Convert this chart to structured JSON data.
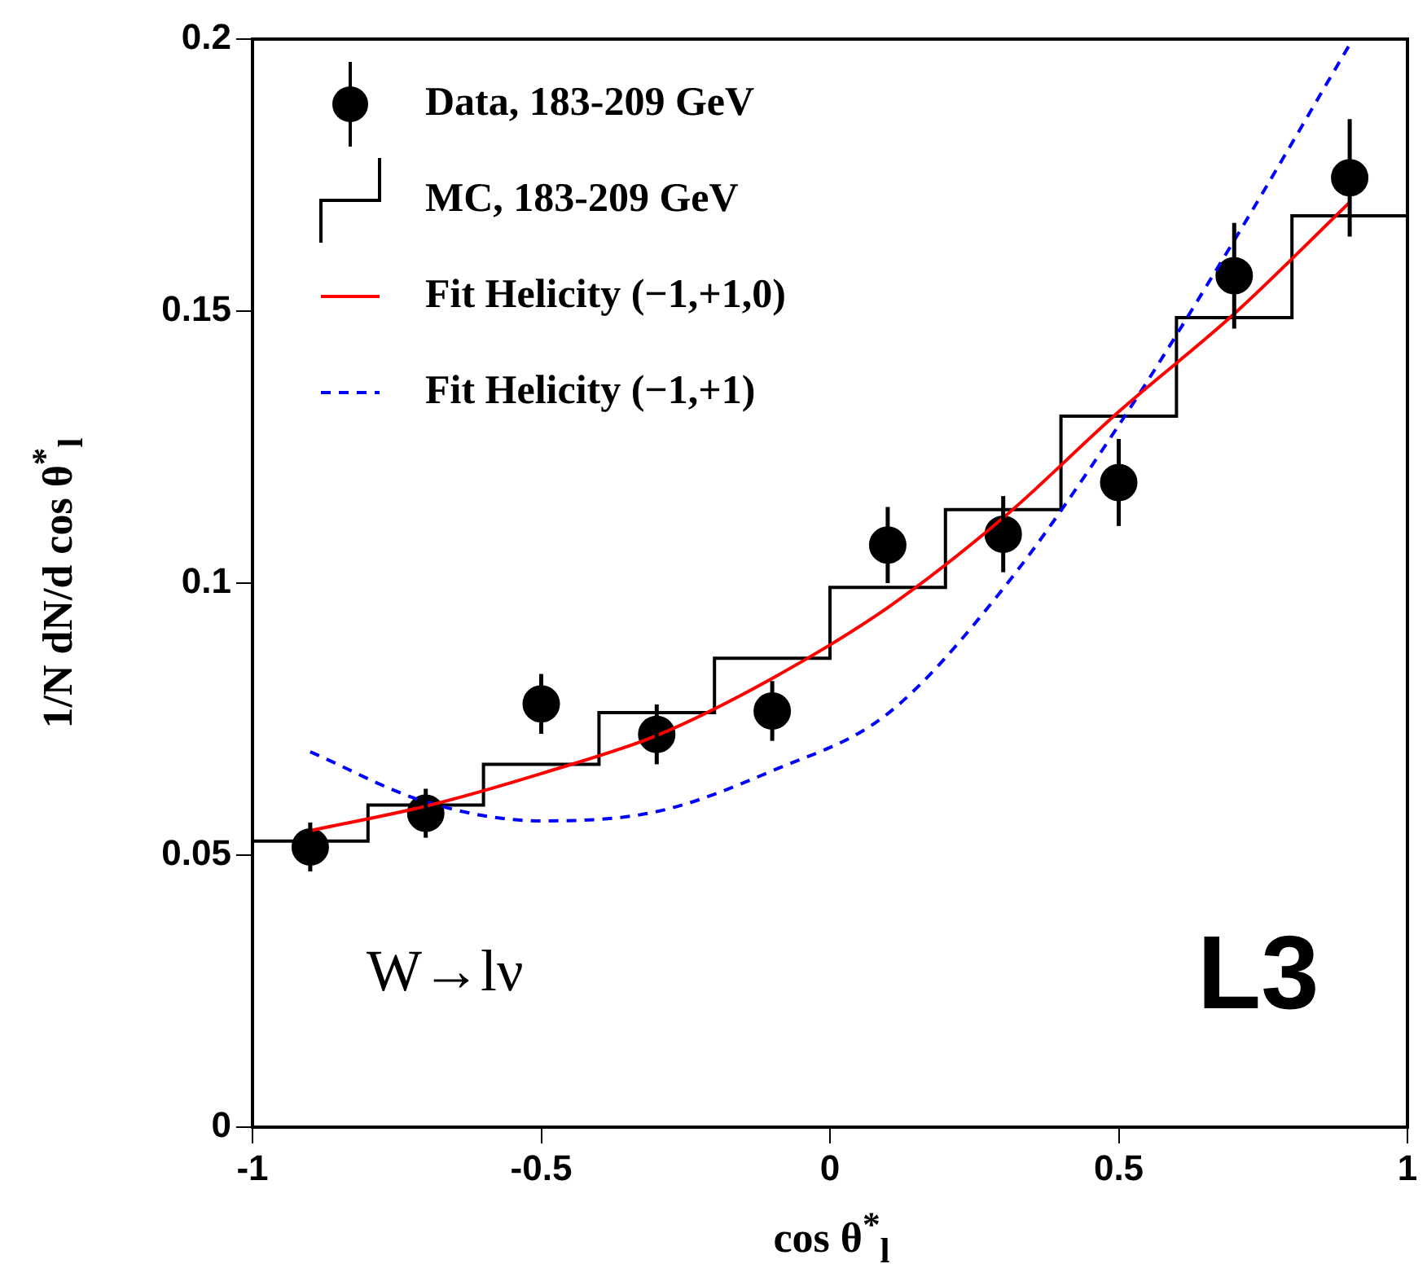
{
  "chart_data": {
    "type": "scatter",
    "xlabel": "cos θ$^{*}$$_{l}$",
    "ylabel": "1/N dN/d cos θ$^{*}$$_{l}$",
    "annotations": [
      "W→lν",
      "L3"
    ],
    "xlim": [
      -1,
      1
    ],
    "xticks": [
      -1,
      -0.5,
      0,
      0.5,
      1
    ],
    "ylim": [
      0,
      0.2
    ],
    "yticks": [
      0,
      0.05,
      0.1,
      0.15,
      0.2
    ],
    "grid": false,
    "legend": "top left",
    "series": [
      {
        "name": "Data, 183-209 GeV",
        "marker": "circle",
        "color": "#000000",
        "x": [
          -0.9,
          -0.7,
          -0.5,
          -0.3,
          -0.1,
          0.1,
          0.3,
          0.5,
          0.7,
          0.9
        ],
        "values": [
          0.0515,
          0.0577,
          0.0778,
          0.0722,
          0.0765,
          0.107,
          0.109,
          0.1185,
          0.1565,
          0.1745
        ],
        "errors": [
          0.0045,
          0.0045,
          0.0055,
          0.0055,
          0.0055,
          0.007,
          0.007,
          0.008,
          0.0097,
          0.0108
        ]
      },
      {
        "name": "MC, 183-209 GeV",
        "type": "step",
        "color": "#000000",
        "x": [
          -1,
          -0.8,
          -0.6,
          -0.4,
          -0.2,
          0,
          0.2,
          0.4,
          0.6,
          0.8,
          1
        ],
        "values": [
          0.0526,
          0.0592,
          0.0667,
          0.0762,
          0.0862,
          0.0992,
          0.1135,
          0.1307,
          0.1488,
          0.1675,
          0.1675
        ]
      },
      {
        "name": "Fit Helicity (−1,+1,0)",
        "type": "line",
        "color": "#ff0000",
        "line_style": "solid",
        "x": [
          -0.9,
          -0.7,
          -0.5,
          -0.3,
          -0.1,
          0.1,
          0.3,
          0.5,
          0.7,
          0.9
        ],
        "values": [
          0.0545,
          0.059,
          0.065,
          0.072,
          0.0825,
          0.0955,
          0.112,
          0.1315,
          0.1495,
          0.17
        ]
      },
      {
        "name": "Fit Helicity (−1,+1)",
        "type": "line",
        "color": "#0000ff",
        "line_style": "dashed",
        "x": [
          -0.9,
          -0.7,
          -0.5,
          -0.3,
          -0.1,
          0.1,
          0.3,
          0.5,
          0.7,
          0.9
        ],
        "values": [
          0.069,
          0.0598,
          0.0563,
          0.058,
          0.0655,
          0.076,
          0.099,
          0.129,
          0.163,
          0.199
        ]
      }
    ]
  }
}
